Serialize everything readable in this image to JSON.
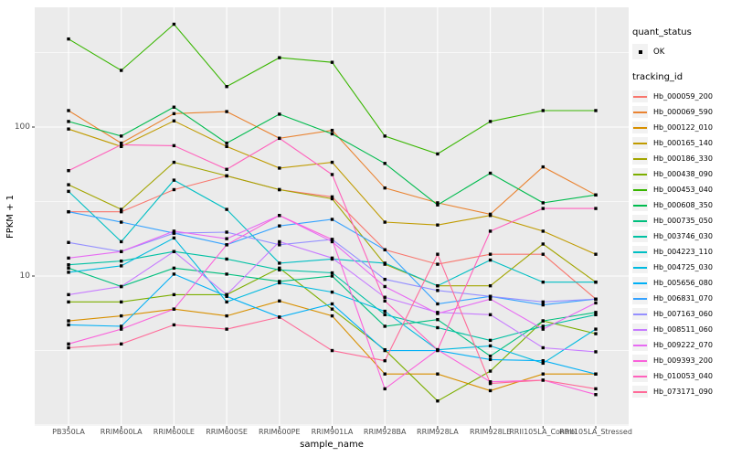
{
  "figure": {
    "y_tick_labels": [
      "100",
      "10"
    ],
    "legend": {
      "quant_status_title": "quant_status",
      "quant_status_items": [
        {
          "label": "OK",
          "marker": "black-square-point"
        }
      ],
      "tracking_id_title": "tracking_id"
    }
  },
  "chart_data": {
    "type": "line",
    "title": "",
    "xlabel": "sample_name",
    "ylabel": "FPKM + 1",
    "y_scale": "log10",
    "y_ticks": [
      100,
      10
    ],
    "y_minor_breaks": [
      3.16,
      31.6,
      316
    ],
    "ylim": [
      1.3,
      520
    ],
    "grid": "on",
    "legend_position": "right",
    "point_shape": "filled-black-square",
    "x_categories": [
      "PB350LA",
      "RRIM600LA",
      "RRIM600LE",
      "RRIM600SE",
      "RRIM600PE",
      "RRIM901LA",
      "RRIM928BA",
      "RRIM928LA",
      "RRIM928LE",
      "RRII105LA_Control",
      "RRII105LA_Stressed"
    ],
    "series": [
      {
        "name": "Hb_000059_200",
        "color": "#F8766D",
        "values": [
          27,
          27,
          38,
          47,
          38,
          34,
          15,
          12,
          14,
          14,
          7
        ]
      },
      {
        "name": "Hb_000069_590",
        "color": "#EA8331",
        "values": [
          129,
          78,
          123,
          127,
          84,
          95,
          39,
          31,
          26,
          54,
          35
        ]
      },
      {
        "name": "Hb_000122_010",
        "color": "#D89000",
        "values": [
          5.0,
          5.4,
          6.0,
          5.4,
          6.8,
          5.4,
          2.2,
          2.2,
          1.7,
          2.2,
          2.2
        ]
      },
      {
        "name": "Hb_000165_140",
        "color": "#C09B00",
        "values": [
          97,
          74,
          110,
          74,
          53,
          58,
          23,
          22,
          25.5,
          20,
          14
        ]
      },
      {
        "name": "Hb_000186_330",
        "color": "#A3A500",
        "values": [
          41,
          28,
          58,
          47,
          38,
          33,
          12,
          8.6,
          8.6,
          16.4,
          9.1
        ]
      },
      {
        "name": "Hb_000438_090",
        "color": "#7CAE00",
        "values": [
          6.7,
          6.7,
          7.5,
          7.5,
          11.3,
          6.0,
          3.2,
          1.45,
          2.3,
          5.0,
          4.1
        ]
      },
      {
        "name": "Hb_000453_040",
        "color": "#39B600",
        "values": [
          390,
          240,
          490,
          187,
          292,
          272,
          87,
          66,
          109,
          129,
          129
        ]
      },
      {
        "name": "Hb_000608_350",
        "color": "#00BB4E",
        "values": [
          109,
          87,
          136,
          78,
          122,
          90,
          57,
          30,
          49,
          31,
          35
        ]
      },
      {
        "name": "Hb_000735_050",
        "color": "#00BF7D",
        "values": [
          11.3,
          8.5,
          11.3,
          10.3,
          9.2,
          10,
          4.6,
          5.1,
          2.9,
          5.0,
          5.7
        ]
      },
      {
        "name": "Hb_003746_030",
        "color": "#00C1A3",
        "values": [
          11.9,
          12.6,
          14.6,
          13,
          11,
          10.5,
          5.5,
          4.5,
          3.7,
          4.6,
          5.5
        ]
      },
      {
        "name": "Hb_004223_110",
        "color": "#00BFC4",
        "values": [
          37,
          17,
          44,
          28,
          12.2,
          13,
          12.2,
          8.6,
          12.8,
          9.1,
          9.1
        ]
      },
      {
        "name": "Hb_004725_030",
        "color": "#00BAE0",
        "values": [
          10.6,
          11.7,
          18,
          6.7,
          9.0,
          7.8,
          5.8,
          3.2,
          3.4,
          2.6,
          4.4
        ]
      },
      {
        "name": "Hb_005656_080",
        "color": "#00B0F6",
        "values": [
          4.7,
          4.6,
          10.3,
          7.3,
          5.3,
          6.5,
          3.16,
          3.16,
          2.75,
          2.7,
          2.2
        ]
      },
      {
        "name": "Hb_006831_070",
        "color": "#35A2FF",
        "values": [
          27,
          23,
          19.4,
          16.2,
          21.7,
          24,
          15,
          6.5,
          7.3,
          6.4,
          7.0
        ]
      },
      {
        "name": "Hb_007163_060",
        "color": "#9590FF",
        "values": [
          16.8,
          14.6,
          19.4,
          19.7,
          16.2,
          17.6,
          9.5,
          8.0,
          7.3,
          6.7,
          7.0
        ]
      },
      {
        "name": "Hb_008511_060",
        "color": "#C77CFF",
        "values": [
          7.5,
          8.5,
          14.6,
          7.5,
          17,
          13.2,
          7.2,
          5.7,
          5.5,
          3.3,
          3.1
        ]
      },
      {
        "name": "Hb_009222_070",
        "color": "#E76BF3",
        "values": [
          13.2,
          14.6,
          20,
          17.8,
          25.5,
          17,
          8.5,
          5.6,
          7.0,
          4.4,
          6.6
        ]
      },
      {
        "name": "Hb_009393_200",
        "color": "#FA62DB",
        "values": [
          3.5,
          4.4,
          6.0,
          16.2,
          25.5,
          17.6,
          1.75,
          3.2,
          1.95,
          2.0,
          1.6
        ]
      },
      {
        "name": "Hb_010053_040",
        "color": "#FF62BC",
        "values": [
          51,
          76,
          75,
          52,
          84,
          48,
          6.8,
          3.2,
          20,
          28.4,
          28.4
        ]
      },
      {
        "name": "Hb_073171_090",
        "color": "#FF6A98",
        "values": [
          3.3,
          3.5,
          4.7,
          4.4,
          5.3,
          3.16,
          2.7,
          14,
          1.9,
          2.0,
          1.75
        ]
      }
    ],
    "style": {
      "panel_bg": "#EBEBEB",
      "grid_color": "#FFFFFF",
      "tick_color": "#333333",
      "axis_text_color": "#4D4D4D",
      "point_color": "#000000",
      "legend_key_bg": "#F2F2F2"
    }
  }
}
